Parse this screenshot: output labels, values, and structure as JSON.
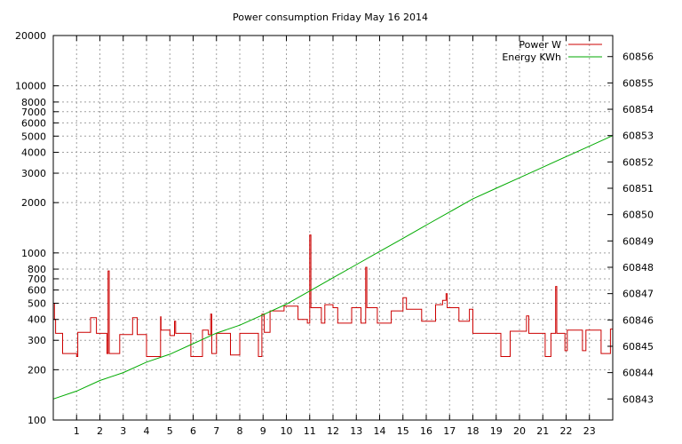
{
  "chart_data": {
    "type": "line",
    "title": "Power consumption Friday May 16 2014",
    "x_range": [
      0,
      24
    ],
    "x_ticks": [
      1,
      2,
      3,
      4,
      5,
      6,
      7,
      8,
      9,
      10,
      11,
      12,
      13,
      14,
      15,
      16,
      17,
      18,
      19,
      20,
      21,
      22,
      23
    ],
    "y_left": {
      "scale": "log",
      "range": [
        100,
        20000
      ],
      "ticks": [
        100,
        200,
        300,
        400,
        500,
        600,
        700,
        800,
        1000,
        2000,
        3000,
        4000,
        5000,
        6000,
        7000,
        8000,
        10000,
        20000
      ]
    },
    "y_right": {
      "scale": "linear",
      "range": [
        60842.2,
        60856.8
      ],
      "ticks": [
        60843,
        60844,
        60845,
        60846,
        60847,
        60848,
        60849,
        60850,
        60851,
        60852,
        60853,
        60854,
        60855,
        60856
      ]
    },
    "grid": true,
    "legend_position": "top-right",
    "series": [
      {
        "name": "Power W",
        "axis": "left",
        "color": "#cc0000",
        "step": true,
        "points": [
          [
            0.0,
            500
          ],
          [
            0.05,
            400
          ],
          [
            0.1,
            330
          ],
          [
            0.4,
            250
          ],
          [
            1.0,
            240
          ],
          [
            1.05,
            335
          ],
          [
            1.6,
            410
          ],
          [
            1.85,
            330
          ],
          [
            2.3,
            250
          ],
          [
            2.35,
            780
          ],
          [
            2.4,
            250
          ],
          [
            2.85,
            325
          ],
          [
            3.4,
            410
          ],
          [
            3.6,
            325
          ],
          [
            4.0,
            240
          ],
          [
            4.6,
            415
          ],
          [
            4.62,
            345
          ],
          [
            5.0,
            320
          ],
          [
            5.2,
            390
          ],
          [
            5.25,
            330
          ],
          [
            5.9,
            240
          ],
          [
            6.4,
            345
          ],
          [
            6.65,
            325
          ],
          [
            6.75,
            430
          ],
          [
            6.8,
            250
          ],
          [
            7.0,
            330
          ],
          [
            7.6,
            245
          ],
          [
            8.0,
            330
          ],
          [
            8.8,
            240
          ],
          [
            8.95,
            430
          ],
          [
            9.05,
            335
          ],
          [
            9.3,
            450
          ],
          [
            9.9,
            480
          ],
          [
            10.5,
            400
          ],
          [
            10.9,
            380
          ],
          [
            11.0,
            1280
          ],
          [
            11.05,
            470
          ],
          [
            11.5,
            380
          ],
          [
            11.65,
            490
          ],
          [
            12.0,
            470
          ],
          [
            12.2,
            380
          ],
          [
            12.8,
            470
          ],
          [
            13.2,
            380
          ],
          [
            13.4,
            820
          ],
          [
            13.45,
            470
          ],
          [
            13.9,
            380
          ],
          [
            14.5,
            450
          ],
          [
            15.0,
            540
          ],
          [
            15.15,
            460
          ],
          [
            15.8,
            390
          ],
          [
            16.4,
            490
          ],
          [
            16.7,
            520
          ],
          [
            16.85,
            570
          ],
          [
            16.9,
            470
          ],
          [
            17.4,
            390
          ],
          [
            17.85,
            460
          ],
          [
            18.0,
            330
          ],
          [
            18.8,
            330
          ],
          [
            19.2,
            240
          ],
          [
            19.6,
            340
          ],
          [
            20.3,
            420
          ],
          [
            20.4,
            330
          ],
          [
            21.1,
            240
          ],
          [
            21.35,
            330
          ],
          [
            21.55,
            630
          ],
          [
            21.6,
            330
          ],
          [
            21.95,
            260
          ],
          [
            22.05,
            345
          ],
          [
            22.7,
            260
          ],
          [
            22.85,
            345
          ],
          [
            23.5,
            250
          ],
          [
            23.9,
            350
          ]
        ]
      },
      {
        "name": "Energy KWh",
        "axis": "right",
        "color": "#00aa00",
        "step": false,
        "points": [
          [
            0.0,
            60843.0
          ],
          [
            1.0,
            60843.3
          ],
          [
            2.0,
            60843.7
          ],
          [
            3.0,
            60844.0
          ],
          [
            4.0,
            60844.4
          ],
          [
            5.0,
            60844.7
          ],
          [
            6.0,
            60845.1
          ],
          [
            7.0,
            60845.5
          ],
          [
            8.0,
            60845.8
          ],
          [
            9.0,
            60846.2
          ],
          [
            10.0,
            60846.6
          ],
          [
            11.0,
            60847.1
          ],
          [
            12.0,
            60847.6
          ],
          [
            13.0,
            60848.1
          ],
          [
            14.0,
            60848.6
          ],
          [
            15.0,
            60849.1
          ],
          [
            16.0,
            60849.6
          ],
          [
            17.0,
            60850.1
          ],
          [
            18.0,
            60850.6
          ],
          [
            19.0,
            60851.0
          ],
          [
            20.0,
            60851.4
          ],
          [
            21.0,
            60851.8
          ],
          [
            22.0,
            60852.2
          ],
          [
            23.0,
            60852.6
          ],
          [
            24.0,
            60853.0
          ]
        ]
      }
    ]
  }
}
